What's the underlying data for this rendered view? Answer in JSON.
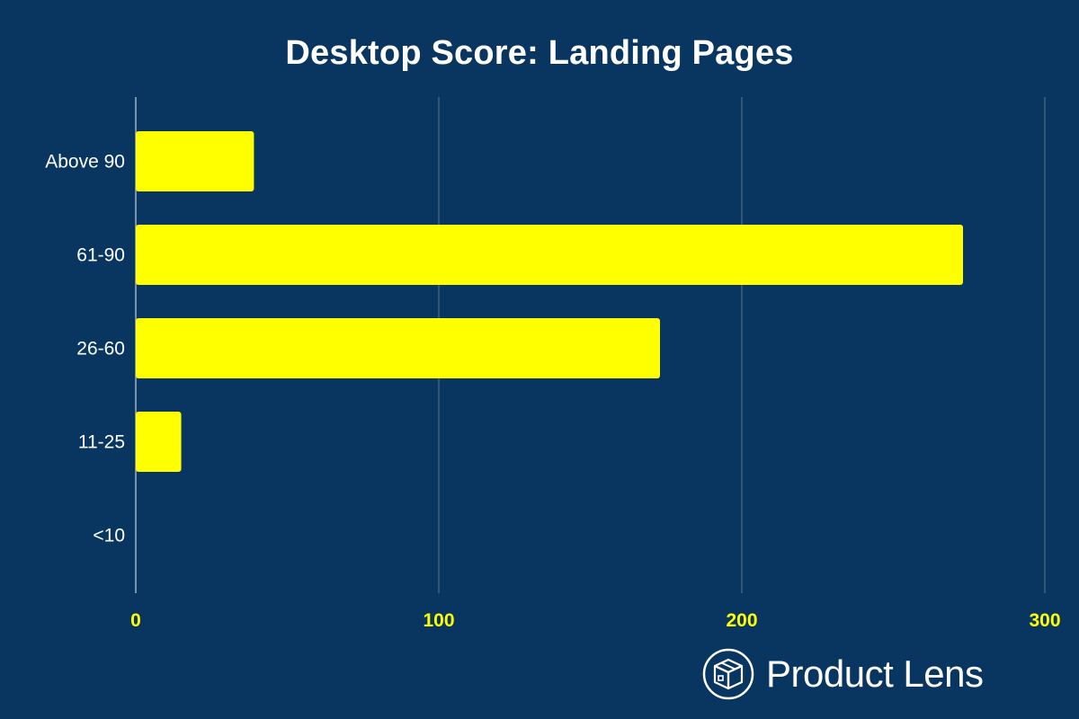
{
  "colors": {
    "background": "#083661",
    "bar": "#FFFF00",
    "grid": "#5a7590",
    "x_tick_label": "#FFFF00",
    "y_tick_label": "#ffffff",
    "title": "#ffffff"
  },
  "brand": {
    "name": "Product Lens",
    "icon": "box-logo-icon"
  },
  "chart_data": {
    "type": "bar",
    "orientation": "horizontal",
    "title": "Desktop Score: Landing Pages",
    "xlabel": "",
    "ylabel": "",
    "categories": [
      "Above 90",
      "61-90",
      "26-60",
      "11-25",
      "<10"
    ],
    "values": [
      39,
      273,
      173,
      15,
      0
    ],
    "xlim": [
      0,
      300
    ],
    "xticks": [
      0,
      100,
      200,
      300
    ],
    "grid": true,
    "legend": "none"
  }
}
